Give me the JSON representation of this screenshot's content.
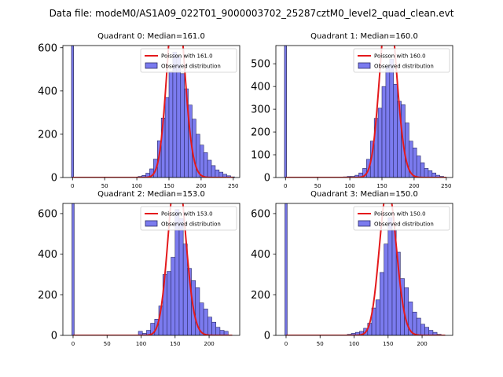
{
  "suptitle": "Data file: modeM0/AS1A09_022T01_9000003702_25287cztM0_level2_quad_clean.evt",
  "colors": {
    "bar_fill": "#7b7bef",
    "bar_edge": "#2a2a66",
    "curve": "#e41a1c",
    "axis": "#000000"
  },
  "chart_data": [
    {
      "type": "bar",
      "title": "Quadrant 0: Median=161.0",
      "median": 161.0,
      "legend": {
        "curve_label": "Poisson with 161.0",
        "bar_label": "Observed distribution",
        "placement": "top-right"
      },
      "xlim": [
        -15,
        260
      ],
      "ylim": [
        0,
        610
      ],
      "xticks": [
        0,
        50,
        100,
        150,
        200,
        250
      ],
      "yticks": [
        0,
        200,
        400,
        600
      ],
      "spike": {
        "x": 0,
        "value": 610
      },
      "bin_width": 6,
      "bin_starts": [
        102,
        108,
        114,
        120,
        126,
        132,
        138,
        144,
        150,
        156,
        162,
        168,
        174,
        180,
        186,
        192,
        198,
        204,
        210,
        216,
        222,
        228,
        234,
        240,
        246
      ],
      "values": [
        5,
        10,
        20,
        40,
        85,
        170,
        275,
        370,
        490,
        580,
        560,
        480,
        410,
        335,
        270,
        200,
        150,
        115,
        80,
        55,
        35,
        25,
        15,
        8,
        3
      ]
    },
    {
      "type": "bar",
      "title": "Quadrant 1: Median=160.0",
      "median": 160.0,
      "legend": {
        "curve_label": "Poisson with 160.0",
        "bar_label": "Observed distribution",
        "placement": "top-right"
      },
      "xlim": [
        -15,
        260
      ],
      "ylim": [
        0,
        580
      ],
      "xticks": [
        0,
        50,
        100,
        150,
        200,
        250
      ],
      "yticks": [
        0,
        100,
        200,
        300,
        400,
        500
      ],
      "spike": {
        "x": 0,
        "value": 580
      },
      "bin_width": 6,
      "bin_starts": [
        90,
        96,
        102,
        108,
        114,
        120,
        126,
        132,
        138,
        144,
        150,
        156,
        162,
        168,
        174,
        180,
        186,
        192,
        198,
        204,
        210,
        216,
        222,
        228,
        234,
        240
      ],
      "values": [
        3,
        5,
        5,
        10,
        20,
        40,
        80,
        160,
        260,
        305,
        400,
        490,
        520,
        410,
        335,
        320,
        240,
        160,
        130,
        95,
        65,
        40,
        30,
        20,
        10,
        5
      ]
    },
    {
      "type": "bar",
      "title": "Quadrant 2: Median=153.0",
      "median": 153.0,
      "legend": {
        "curve_label": "Poisson with 153.0",
        "bar_label": "Observed distribution",
        "placement": "top-right"
      },
      "xlim": [
        -15,
        245
      ],
      "ylim": [
        0,
        650
      ],
      "xticks": [
        0,
        50,
        100,
        150,
        200
      ],
      "yticks": [
        0,
        200,
        400,
        600
      ],
      "spike": {
        "x": 0,
        "value": 650
      },
      "bin_width": 6,
      "bin_starts": [
        96,
        102,
        108,
        114,
        120,
        126,
        132,
        138,
        144,
        150,
        156,
        162,
        168,
        174,
        180,
        186,
        192,
        198,
        204,
        210,
        216,
        222
      ],
      "values": [
        20,
        10,
        25,
        60,
        80,
        145,
        300,
        315,
        385,
        620,
        575,
        450,
        330,
        270,
        235,
        160,
        130,
        90,
        65,
        40,
        25,
        20
      ]
    },
    {
      "type": "bar",
      "title": "Quadrant 3: Median=150.0",
      "median": 150.0,
      "legend": {
        "curve_label": "Poisson with 150.0",
        "bar_label": "Observed distribution",
        "placement": "top-right"
      },
      "xlim": [
        -15,
        245
      ],
      "ylim": [
        0,
        650
      ],
      "xticks": [
        0,
        50,
        100,
        150,
        200
      ],
      "yticks": [
        0,
        200,
        400,
        600
      ],
      "spike": {
        "x": 0,
        "value": 650
      },
      "bin_width": 6,
      "bin_starts": [
        90,
        96,
        102,
        108,
        114,
        120,
        126,
        132,
        138,
        144,
        150,
        156,
        162,
        168,
        174,
        180,
        186,
        192,
        198,
        204,
        210,
        216,
        222
      ],
      "values": [
        5,
        10,
        15,
        20,
        35,
        60,
        135,
        175,
        310,
        450,
        580,
        520,
        410,
        280,
        235,
        165,
        115,
        85,
        55,
        40,
        25,
        15,
        5
      ]
    }
  ]
}
